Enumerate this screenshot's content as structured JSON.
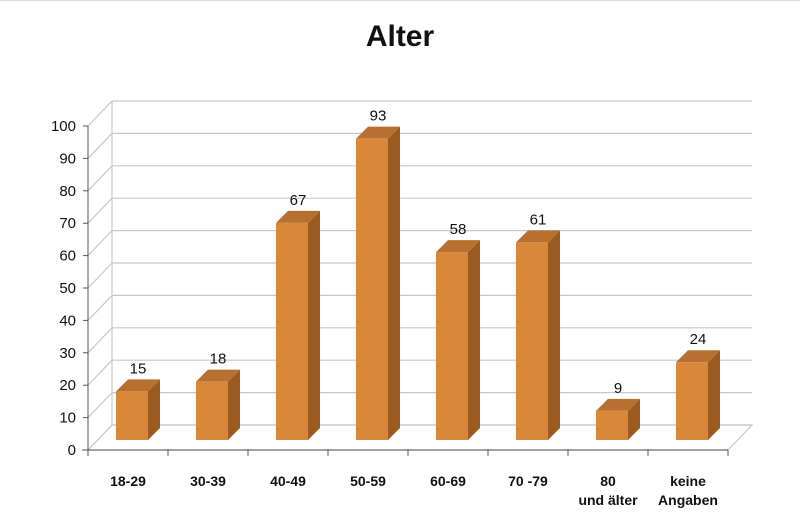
{
  "chart_data": {
    "type": "bar",
    "title": "Alter",
    "categories": [
      "18-29",
      "30-39",
      "40-49",
      "50-59",
      "60-69",
      "70 -79",
      "80 und älter",
      "keine Angaben"
    ],
    "values": [
      15,
      18,
      67,
      93,
      58,
      61,
      9,
      24
    ],
    "ylim": [
      0,
      100
    ],
    "yticks": [
      0,
      10,
      20,
      30,
      40,
      50,
      60,
      70,
      80,
      90,
      100
    ],
    "grid": true,
    "legend": "none",
    "bar_style": "3d",
    "colors": {
      "bar_front": "#d9873a",
      "bar_side": "#9a5a20",
      "bar_top": "#b87030",
      "grid": "#c8c8c8"
    }
  }
}
